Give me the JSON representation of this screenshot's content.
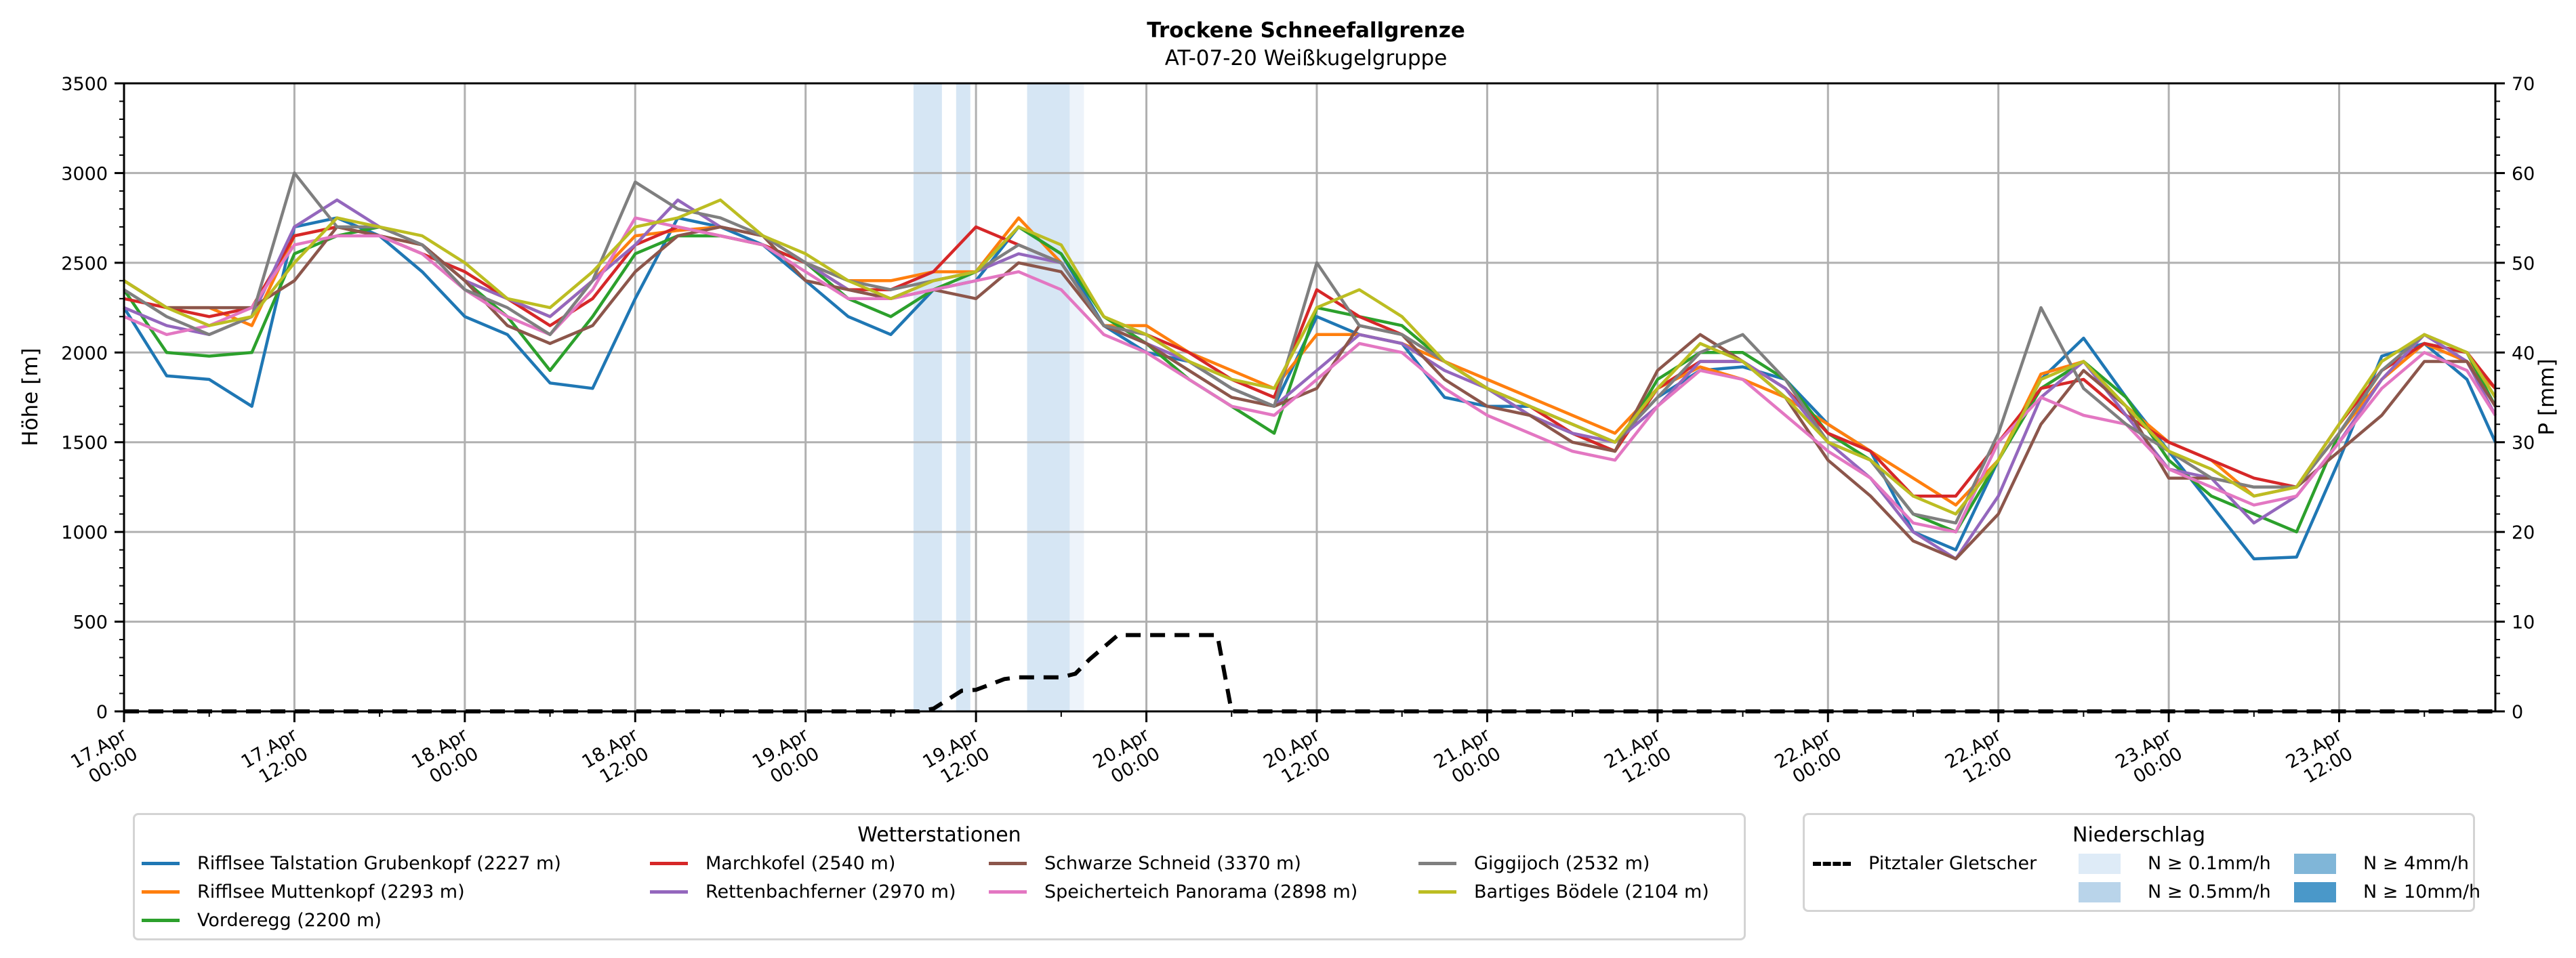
{
  "chart_data": {
    "type": "line",
    "title": "Trockene Schneefallgrenze",
    "subtitle": "AT-07-20 Weißkugelgruppe",
    "ylabel": "Höhe [m]",
    "y2label": "P [mm]",
    "ylim": [
      0,
      3500
    ],
    "y2lim": [
      0,
      70
    ],
    "yticks": [
      0,
      500,
      1000,
      1500,
      2000,
      2500,
      3000,
      3500
    ],
    "y2ticks": [
      0,
      10,
      20,
      30,
      40,
      50,
      60,
      70
    ],
    "x_unit": "hours since 17.Apr 00:00",
    "xlim_hours": [
      0,
      167
    ],
    "xticks": [
      {
        "h": 0,
        "line1": "17.Apr",
        "line2": "00:00"
      },
      {
        "h": 12,
        "line1": "17.Apr",
        "line2": "12:00"
      },
      {
        "h": 24,
        "line1": "18.Apr",
        "line2": "00:00"
      },
      {
        "h": 36,
        "line1": "18.Apr",
        "line2": "12:00"
      },
      {
        "h": 48,
        "line1": "19.Apr",
        "line2": "00:00"
      },
      {
        "h": 60,
        "line1": "19.Apr",
        "line2": "12:00"
      },
      {
        "h": 72,
        "line1": "20.Apr",
        "line2": "00:00"
      },
      {
        "h": 84,
        "line1": "20.Apr",
        "line2": "12:00"
      },
      {
        "h": 96,
        "line1": "21.Apr",
        "line2": "00:00"
      },
      {
        "h": 108,
        "line1": "21.Apr",
        "line2": "12:00"
      },
      {
        "h": 120,
        "line1": "22.Apr",
        "line2": "00:00"
      },
      {
        "h": 132,
        "line1": "22.Apr",
        "line2": "12:00"
      },
      {
        "h": 144,
        "line1": "23.Apr",
        "line2": "00:00"
      },
      {
        "h": 156,
        "line1": "23.Apr",
        "line2": "12:00"
      }
    ],
    "grid": true,
    "x_hours": [
      0,
      3,
      6,
      9,
      12,
      15,
      18,
      21,
      24,
      27,
      30,
      33,
      36,
      39,
      42,
      45,
      48,
      51,
      54,
      57,
      60,
      63,
      66,
      69,
      72,
      75,
      78,
      81,
      84,
      87,
      90,
      93,
      96,
      99,
      102,
      105,
      108,
      111,
      114,
      117,
      120,
      123,
      126,
      129,
      132,
      135,
      138,
      141,
      144,
      147,
      150,
      153,
      156,
      159,
      162,
      165,
      167
    ],
    "series": [
      {
        "name": "Rifflsee Talstation Grubenkopf (2227 m)",
        "color": "#1f77b4",
        "values": [
          2250,
          1870,
          1850,
          1700,
          2700,
          2750,
          2650,
          2450,
          2200,
          2100,
          1830,
          1800,
          2300,
          2750,
          2700,
          2600,
          2400,
          2200,
          2100,
          2350,
          2400,
          2700,
          2550,
          2150,
          2000,
          1950,
          1800,
          1700,
          2200,
          2100,
          2050,
          1750,
          1700,
          1700,
          1600,
          1500,
          1750,
          1900,
          1920,
          1850,
          1600,
          1450,
          1000,
          900,
          1400,
          1850,
          2080,
          1750,
          1450,
          1150,
          850,
          860,
          1400,
          1980,
          2050,
          1850,
          1500
        ]
      },
      {
        "name": "Rifflsee Muttenkopf (2293 m)",
        "color": "#ff7f0e",
        "values": [
          2400,
          2250,
          2250,
          2150,
          2650,
          2700,
          2650,
          2600,
          2400,
          2300,
          2200,
          2400,
          2650,
          2680,
          2700,
          2650,
          2500,
          2400,
          2400,
          2450,
          2450,
          2750,
          2500,
          2150,
          2150,
          2000,
          1900,
          1800,
          2100,
          2100,
          2050,
          1950,
          1850,
          1750,
          1650,
          1550,
          1800,
          1920,
          1850,
          1750,
          1600,
          1450,
          1300,
          1150,
          1400,
          1880,
          1950,
          1700,
          1500,
          1400,
          1200,
          1250,
          1550,
          1850,
          2050,
          1950,
          1800
        ]
      },
      {
        "name": "Vorderegg (2200 m)",
        "color": "#2ca02c",
        "values": [
          2350,
          2000,
          1980,
          2000,
          2550,
          2650,
          2700,
          2600,
          2400,
          2200,
          1900,
          2200,
          2550,
          2650,
          2650,
          2600,
          2500,
          2300,
          2200,
          2350,
          2450,
          2700,
          2550,
          2200,
          2050,
          1850,
          1700,
          1550,
          2250,
          2200,
          2150,
          1950,
          1800,
          1650,
          1550,
          1450,
          1850,
          2000,
          2000,
          1850,
          1550,
          1400,
          1100,
          1000,
          1400,
          1800,
          1950,
          1750,
          1400,
          1200,
          1100,
          1000,
          1550,
          1900,
          2050,
          2000,
          1700
        ]
      },
      {
        "name": "Marchkofel (2540 m)",
        "color": "#d62728",
        "values": [
          2300,
          2250,
          2200,
          2250,
          2650,
          2700,
          2650,
          2550,
          2450,
          2300,
          2150,
          2300,
          2600,
          2700,
          2650,
          2600,
          2500,
          2350,
          2350,
          2450,
          2700,
          2600,
          2500,
          2150,
          2100,
          2000,
          1850,
          1750,
          2350,
          2200,
          2100,
          1950,
          1800,
          1700,
          1550,
          1450,
          1800,
          1950,
          1950,
          1800,
          1550,
          1450,
          1200,
          1200,
          1500,
          1800,
          1850,
          1650,
          1500,
          1400,
          1300,
          1250,
          1600,
          1900,
          2050,
          2000,
          1800
        ]
      },
      {
        "name": "Rettenbachferner (2970 m)",
        "color": "#9467bd",
        "values": [
          2250,
          2150,
          2100,
          2200,
          2700,
          2850,
          2700,
          2600,
          2400,
          2300,
          2200,
          2400,
          2600,
          2850,
          2700,
          2650,
          2500,
          2350,
          2300,
          2400,
          2450,
          2550,
          2500,
          2150,
          2050,
          1950,
          1800,
          1700,
          1900,
          2100,
          2050,
          1900,
          1800,
          1650,
          1550,
          1500,
          1700,
          1950,
          1950,
          1800,
          1500,
          1300,
          1000,
          850,
          1200,
          1750,
          1950,
          1650,
          1350,
          1300,
          1050,
          1200,
          1500,
          1850,
          2100,
          1950,
          1650
        ]
      },
      {
        "name": "Schwarze Schneid (3370 m)",
        "color": "#8c564b",
        "values": [
          2400,
          2250,
          2250,
          2250,
          2400,
          2700,
          2650,
          2600,
          2400,
          2150,
          2050,
          2150,
          2450,
          2650,
          2700,
          2650,
          2400,
          2350,
          2300,
          2350,
          2300,
          2500,
          2450,
          2150,
          2050,
          1900,
          1750,
          1700,
          1800,
          2150,
          2100,
          1850,
          1700,
          1650,
          1500,
          1450,
          1900,
          2100,
          1950,
          1750,
          1400,
          1200,
          950,
          850,
          1100,
          1600,
          1900,
          1700,
          1300,
          1300,
          1250,
          1250,
          1450,
          1650,
          1950,
          1950,
          1700
        ]
      },
      {
        "name": "Speicherteich Panorama (2898 m)",
        "color": "#e377c2",
        "values": [
          2200,
          2100,
          2150,
          2250,
          2600,
          2650,
          2650,
          2550,
          2350,
          2200,
          2100,
          2350,
          2750,
          2700,
          2650,
          2600,
          2450,
          2300,
          2300,
          2350,
          2400,
          2450,
          2350,
          2100,
          2000,
          1850,
          1700,
          1650,
          1850,
          2050,
          2000,
          1800,
          1650,
          1550,
          1450,
          1400,
          1700,
          1900,
          1850,
          1650,
          1450,
          1300,
          1050,
          1000,
          1500,
          1750,
          1650,
          1600,
          1350,
          1250,
          1150,
          1200,
          1500,
          1800,
          2000,
          1900,
          1650
        ]
      },
      {
        "name": "Giggijoch (2532 m)",
        "color": "#7f7f7f",
        "values": [
          2350,
          2200,
          2100,
          2200,
          3000,
          2700,
          2700,
          2600,
          2350,
          2250,
          2100,
          2400,
          2950,
          2800,
          2750,
          2650,
          2500,
          2400,
          2350,
          2400,
          2450,
          2600,
          2500,
          2150,
          2100,
          1950,
          1800,
          1700,
          2500,
          2150,
          2100,
          1950,
          1800,
          1700,
          1600,
          1500,
          1750,
          2000,
          2100,
          1850,
          1500,
          1400,
          1100,
          1050,
          1550,
          2250,
          1800,
          1600,
          1450,
          1300,
          1250,
          1250,
          1550,
          1900,
          2100,
          2000,
          1750
        ]
      },
      {
        "name": "Bartiges Bödele (2104 m)",
        "color": "#bcbd22",
        "values": [
          2400,
          2250,
          2150,
          2200,
          2500,
          2750,
          2700,
          2650,
          2500,
          2300,
          2250,
          2450,
          2700,
          2750,
          2850,
          2650,
          2550,
          2400,
          2300,
          2400,
          2450,
          2700,
          2600,
          2200,
          2100,
          1950,
          1850,
          1800,
          2250,
          2350,
          2200,
          1950,
          1800,
          1700,
          1600,
          1500,
          1800,
          2050,
          1950,
          1750,
          1500,
          1400,
          1200,
          1100,
          1400,
          1850,
          1950,
          1700,
          1450,
          1350,
          1200,
          1250,
          1600,
          1950,
          2100,
          2000,
          1750
        ]
      }
    ],
    "precip_line": {
      "name": "Pitztaler Gletscher",
      "color": "#000000",
      "style": "dashed",
      "axis": "right",
      "x_hours": [
        0,
        46,
        56,
        57,
        58,
        59,
        60,
        61,
        62,
        63,
        64,
        65,
        66,
        67,
        68,
        70,
        77,
        78,
        167
      ],
      "values": [
        0,
        0,
        0,
        0.3,
        1.3,
        2.3,
        2.4,
        3.0,
        3.6,
        3.8,
        3.8,
        3.8,
        3.8,
        4.2,
        5.8,
        8.5,
        8.5,
        0,
        0
      ],
      "values_mm": [
        0,
        0,
        0,
        0.3,
        1.3,
        2.3,
        2.4,
        3.0,
        3.6,
        3.8,
        3.8,
        3.8,
        3.8,
        4.2,
        5.8,
        8.5,
        8.5,
        0,
        0
      ]
    },
    "precip_bands": [
      {
        "from_h": 55.6,
        "to_h": 57.6,
        "level": "N ≥ 0.5mm/h"
      },
      {
        "from_h": 58.6,
        "to_h": 59.6,
        "level": "N ≥ 0.5mm/h"
      },
      {
        "from_h": 63.6,
        "to_h": 66.6,
        "level": "N ≥ 0.5mm/h"
      },
      {
        "from_h": 66.6,
        "to_h": 67.6,
        "level": "N ≥ 0.1mm/h"
      }
    ],
    "legends": [
      {
        "title": "Wetterstationen",
        "placement": "bottom-left",
        "entries_ref": "series"
      },
      {
        "title": "Niederschlag",
        "placement": "bottom-right",
        "entries": [
          {
            "label": "Pitztaler Gletscher",
            "kind": "dashed-line",
            "color": "#000000"
          },
          {
            "label": "N ≥ 0.1mm/h",
            "kind": "patch",
            "color": "#deebf7"
          },
          {
            "label": "N ≥ 0.5mm/h",
            "kind": "patch",
            "color": "#c6dbef"
          },
          {
            "label": "N ≥ 4mm/h",
            "kind": "patch",
            "color": "#6baed6"
          },
          {
            "label": "N ≥ 10mm/h",
            "kind": "patch",
            "color": "#4292c6"
          }
        ]
      }
    ]
  },
  "band_colors": {
    "N ≥ 0.1mm/h": "#edf3fa",
    "N ≥ 0.5mm/h": "#d6e6f4",
    "N ≥ 4mm/h": "#80b6d8",
    "N ≥ 10mm/h": "#4a98c9"
  },
  "legend_station": {
    "title": "Wetterstationen",
    "items": [
      {
        "label": "Rifflsee Talstation Grubenkopf (2227 m)",
        "color": "#1f77b4"
      },
      {
        "label": "Rifflsee Muttenkopf (2293 m)",
        "color": "#ff7f0e"
      },
      {
        "label": "Vorderegg (2200 m)",
        "color": "#2ca02c"
      },
      {
        "label": "Marchkofel (2540 m)",
        "color": "#d62728"
      },
      {
        "label": "Rettenbachferner (2970 m)",
        "color": "#9467bd"
      },
      {
        "label": "Schwarze Schneid (3370 m)",
        "color": "#8c564b"
      },
      {
        "label": "Speicherteich Panorama (2898 m)",
        "color": "#e377c2"
      },
      {
        "label": "Giggijoch (2532 m)",
        "color": "#7f7f7f"
      },
      {
        "label": "Bartiges Bödele (2104 m)",
        "color": "#bcbd22"
      }
    ]
  },
  "legend_precip": {
    "title": "Niederschlag",
    "line_label": "Pitztaler Gletscher",
    "patches": [
      {
        "label": "N ≥ 0.1mm/h",
        "color": "#deebf7"
      },
      {
        "label": "N ≥ 0.5mm/h",
        "color": "#b9d4ea"
      },
      {
        "label": "N ≥ 4mm/h",
        "color": "#80b6d8"
      },
      {
        "label": "N ≥ 10mm/h",
        "color": "#4a98c9"
      }
    ]
  }
}
